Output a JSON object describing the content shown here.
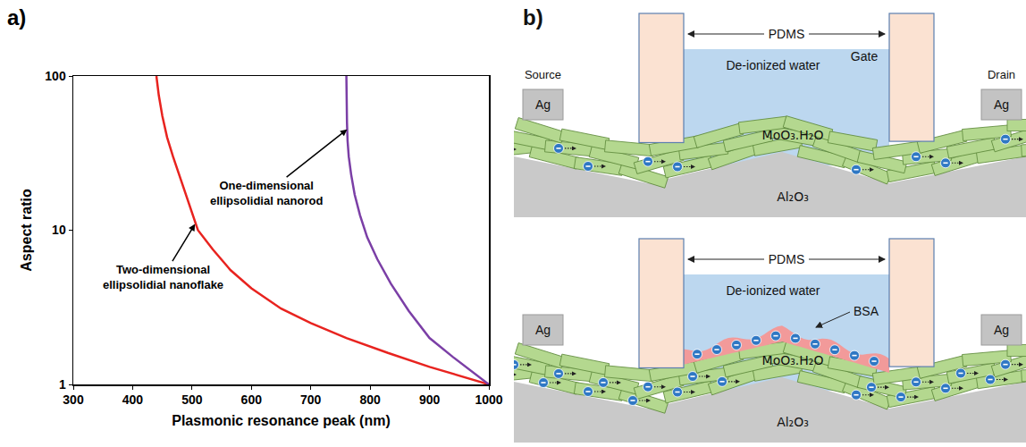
{
  "chart_data": {
    "type": "line",
    "panel": "a)",
    "x_label": "Plasmonic resonance peak (nm)",
    "y_label": "Aspect ratio",
    "log": "y",
    "grid": false,
    "xlim": [
      300,
      1000
    ],
    "xticks": [
      300,
      400,
      500,
      600,
      700,
      800,
      900,
      1000
    ],
    "ylim": [
      1,
      100
    ],
    "yticks": [
      1,
      10,
      100
    ],
    "series": [
      {
        "name": "Two-dimensional ellipsolidial nanoflake",
        "color": "#e8231f",
        "x": [
          440,
          444,
          450,
          458,
          468,
          480,
          495,
          510,
          535,
          565,
          600,
          650,
          700,
          760,
          830,
          900,
          1000
        ],
        "values": [
          100,
          75,
          55,
          40,
          30,
          22,
          15,
          10,
          7.5,
          5.5,
          4.2,
          3.1,
          2.5,
          2,
          1.6,
          1.3,
          1
        ]
      },
      {
        "name": "One-dimensional ellipsolidial nanorod",
        "color": "#7b3fa6",
        "x": [
          760,
          760,
          761,
          762,
          764,
          768,
          774,
          783,
          795,
          812,
          835,
          865,
          900,
          940,
          1000
        ],
        "values": [
          100,
          70,
          50,
          38,
          30,
          23,
          17,
          12.5,
          9,
          6.5,
          4.5,
          3,
          2,
          1.5,
          1
        ]
      }
    ]
  },
  "diagram": {
    "panel": "b)",
    "top": {
      "pdms": "PDMS",
      "water": "De-ionized water",
      "gate": "Gate",
      "source": "Source",
      "drain": "Drain",
      "electrodes": [
        "Ag",
        "Ag"
      ],
      "channel": "MoO₃.H₂O",
      "substrate": "Al₂O₃"
    },
    "bottom": {
      "pdms": "PDMS",
      "water": "De-ionized water",
      "electrodes": [
        "Ag",
        "Ag"
      ],
      "channel": "MoO₃.H₂O",
      "substrate": "Al₂O₃",
      "bsa": "BSA"
    }
  }
}
